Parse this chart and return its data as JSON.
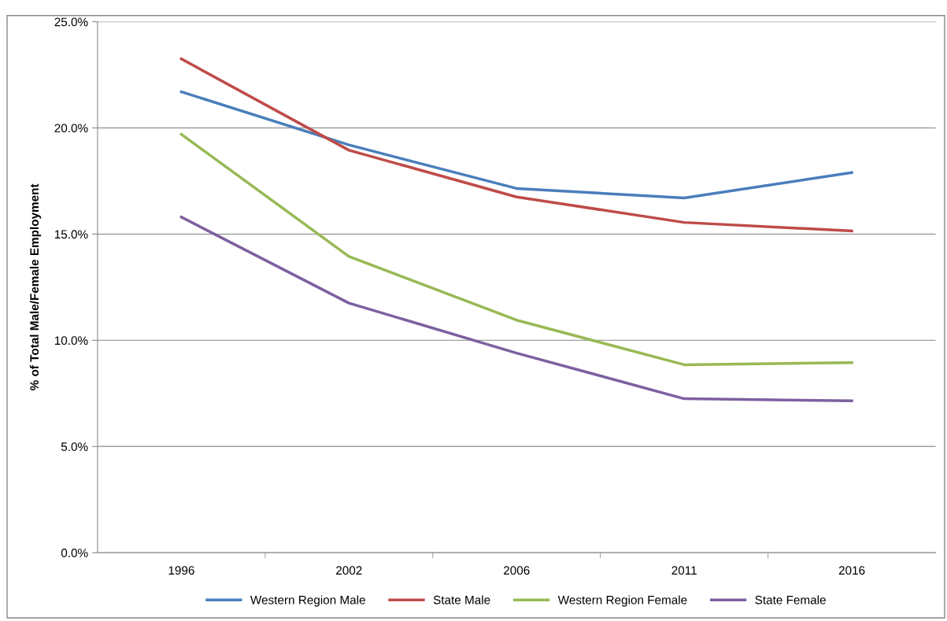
{
  "chart_data": {
    "type": "line",
    "ylabel": "% of Total Male/Female Employment",
    "categories": [
      "1996",
      "2002",
      "2006",
      "2011",
      "2016"
    ],
    "series": [
      {
        "name": "Western Region Male",
        "color": "#4a7ebb",
        "values": [
          21.7,
          19.2,
          17.15,
          16.7,
          17.9
        ]
      },
      {
        "name": "State Male",
        "color": "#be4b48",
        "values": [
          23.25,
          18.95,
          16.75,
          15.55,
          15.15
        ]
      },
      {
        "name": "Western Region Female",
        "color": "#98b954",
        "values": [
          19.7,
          13.95,
          10.95,
          8.85,
          8.95
        ]
      },
      {
        "name": "State Female",
        "color": "#7d60a0",
        "values": [
          15.8,
          11.75,
          9.4,
          7.25,
          7.15
        ]
      }
    ],
    "ylim": [
      0,
      25
    ],
    "yticks": [
      {
        "value": 0,
        "label": "0.0%"
      },
      {
        "value": 5,
        "label": "5.0%"
      },
      {
        "value": 10,
        "label": "10.0%"
      },
      {
        "value": 15,
        "label": "15.0%"
      },
      {
        "value": 20,
        "label": "20.0%"
      },
      {
        "value": 25,
        "label": "25.0%"
      }
    ],
    "grid": "y",
    "legend": "bottom",
    "marker": "none",
    "line_style": "solid"
  }
}
